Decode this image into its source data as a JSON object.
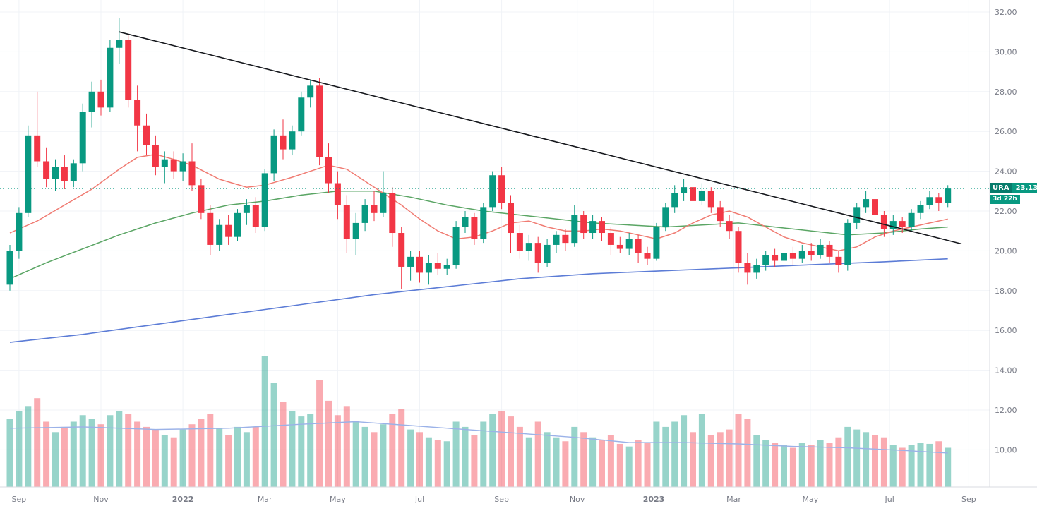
{
  "chart_data": {
    "type": "candlestick",
    "symbol": "URA",
    "last_price": "23.13",
    "countdown": "3d 22h",
    "price_line": {
      "value": 23.13,
      "style": "dotted"
    },
    "colors": {
      "up": "#089981",
      "down": "#f23645",
      "ma_fast": "#f07b72",
      "ma_slow": "#5aa564",
      "ma_long": "#5c7cd6",
      "volume_ma": "#9bb2e8",
      "trendline": "#16181d",
      "grid": "#f0f3f7",
      "axis_text": "#787b86",
      "axis_border": "#d8dbe0",
      "background": "#ffffff"
    },
    "axes": {
      "y_top_value": 32,
      "y_tick_step": 2,
      "y_ticks": [
        "32.00",
        "30.00",
        "28.00",
        "26.00",
        "24.00",
        "22.00",
        "20.00",
        "18.00",
        "16.00",
        "14.00",
        "12.00",
        "10.00"
      ],
      "x_labels": [
        {
          "text": "Sep",
          "i": 1
        },
        {
          "text": "Nov",
          "i": 10
        },
        {
          "text": "2022",
          "i": 19,
          "bold": true
        },
        {
          "text": "Mar",
          "i": 28
        },
        {
          "text": "May",
          "i": 36
        },
        {
          "text": "Jul",
          "i": 45
        },
        {
          "text": "Sep",
          "i": 54
        },
        {
          "text": "Nov",
          "i": 62.3
        },
        {
          "text": "2023",
          "i": 70.7,
          "bold": true
        },
        {
          "text": "Mar",
          "i": 79.5
        },
        {
          "text": "May",
          "i": 87.9
        },
        {
          "text": "Jul",
          "i": 96.6
        },
        {
          "text": "Sep",
          "i": 105.3
        }
      ]
    },
    "candles": [
      [
        18.3,
        20.3,
        18.0,
        20.0
      ],
      [
        20.0,
        22.2,
        19.6,
        21.9
      ],
      [
        21.9,
        26.3,
        21.7,
        25.8
      ],
      [
        25.8,
        28.0,
        24.2,
        24.5
      ],
      [
        24.5,
        25.2,
        23.2,
        23.6
      ],
      [
        23.6,
        24.6,
        23.0,
        24.2
      ],
      [
        24.2,
        24.8,
        23.1,
        23.5
      ],
      [
        23.5,
        24.6,
        23.2,
        24.4
      ],
      [
        24.4,
        27.4,
        24.0,
        27.0
      ],
      [
        27.0,
        28.5,
        26.2,
        28.0
      ],
      [
        28.0,
        28.6,
        26.8,
        27.2
      ],
      [
        27.2,
        30.6,
        27.0,
        30.2
      ],
      [
        30.2,
        31.7,
        29.4,
        30.6
      ],
      [
        30.6,
        30.9,
        27.2,
        27.6
      ],
      [
        27.6,
        28.3,
        25.0,
        26.3
      ],
      [
        26.3,
        26.9,
        24.8,
        25.3
      ],
      [
        25.3,
        25.8,
        23.8,
        24.2
      ],
      [
        24.2,
        25.0,
        23.4,
        24.6
      ],
      [
        24.6,
        25.0,
        23.6,
        24.0
      ],
      [
        24.0,
        24.9,
        23.5,
        24.5
      ],
      [
        24.5,
        25.4,
        23.0,
        23.3
      ],
      [
        23.3,
        23.6,
        21.6,
        21.9
      ],
      [
        21.9,
        22.3,
        19.8,
        20.3
      ],
      [
        20.3,
        21.6,
        20.0,
        21.3
      ],
      [
        21.3,
        21.8,
        20.3,
        20.7
      ],
      [
        20.7,
        22.1,
        20.5,
        21.9
      ],
      [
        21.9,
        22.6,
        21.3,
        22.3
      ],
      [
        22.3,
        22.7,
        20.9,
        21.2
      ],
      [
        21.2,
        24.1,
        21.0,
        23.9
      ],
      [
        23.9,
        26.1,
        23.5,
        25.8
      ],
      [
        25.8,
        26.6,
        24.6,
        25.1
      ],
      [
        25.1,
        26.3,
        24.8,
        26.0
      ],
      [
        26.0,
        28.0,
        25.8,
        27.7
      ],
      [
        27.7,
        28.6,
        27.2,
        28.3
      ],
      [
        28.3,
        28.7,
        24.3,
        24.7
      ],
      [
        24.7,
        25.4,
        22.9,
        23.4
      ],
      [
        23.4,
        24.0,
        21.6,
        22.3
      ],
      [
        22.3,
        22.8,
        19.9,
        20.6
      ],
      [
        20.6,
        21.9,
        19.8,
        21.4
      ],
      [
        21.4,
        22.6,
        21.0,
        22.3
      ],
      [
        22.3,
        23.0,
        21.5,
        21.9
      ],
      [
        21.9,
        24.0,
        21.7,
        22.9
      ],
      [
        22.9,
        23.2,
        20.2,
        20.9
      ],
      [
        20.9,
        21.2,
        18.1,
        19.2
      ],
      [
        19.2,
        20.0,
        18.5,
        19.7
      ],
      [
        19.7,
        20.0,
        18.4,
        18.9
      ],
      [
        18.9,
        19.8,
        18.3,
        19.4
      ],
      [
        19.4,
        19.9,
        18.8,
        19.1
      ],
      [
        19.1,
        19.6,
        18.8,
        19.3
      ],
      [
        19.3,
        21.5,
        19.1,
        21.2
      ],
      [
        21.2,
        22.0,
        20.9,
        21.7
      ],
      [
        21.7,
        21.9,
        20.3,
        20.6
      ],
      [
        20.6,
        22.4,
        20.4,
        22.2
      ],
      [
        22.2,
        24.0,
        22.0,
        23.8
      ],
      [
        23.8,
        24.2,
        22.1,
        22.4
      ],
      [
        22.4,
        22.8,
        19.9,
        20.9
      ],
      [
        20.9,
        21.3,
        19.6,
        20.0
      ],
      [
        20.0,
        20.8,
        19.5,
        20.4
      ],
      [
        20.4,
        20.7,
        18.9,
        19.4
      ],
      [
        19.4,
        20.6,
        19.2,
        20.3
      ],
      [
        20.3,
        21.0,
        19.9,
        20.8
      ],
      [
        20.8,
        21.1,
        20.0,
        20.4
      ],
      [
        20.4,
        22.3,
        20.2,
        21.8
      ],
      [
        21.8,
        22.0,
        20.6,
        20.9
      ],
      [
        20.9,
        21.8,
        20.6,
        21.5
      ],
      [
        21.5,
        21.7,
        20.5,
        20.9
      ],
      [
        20.9,
        21.2,
        19.8,
        20.3
      ],
      [
        20.3,
        20.7,
        19.9,
        20.1
      ],
      [
        20.1,
        20.9,
        19.8,
        20.6
      ],
      [
        20.6,
        20.8,
        19.4,
        19.9
      ],
      [
        19.9,
        20.2,
        19.3,
        19.6
      ],
      [
        19.6,
        21.4,
        19.5,
        21.2
      ],
      [
        21.2,
        22.4,
        21.0,
        22.2
      ],
      [
        22.2,
        23.3,
        21.9,
        22.9
      ],
      [
        22.9,
        23.6,
        22.5,
        23.2
      ],
      [
        23.2,
        23.5,
        22.2,
        22.5
      ],
      [
        22.5,
        23.4,
        22.3,
        23.0
      ],
      [
        23.0,
        23.2,
        21.9,
        22.2
      ],
      [
        22.2,
        22.5,
        21.2,
        21.5
      ],
      [
        21.5,
        21.8,
        20.6,
        21.0
      ],
      [
        21.0,
        21.2,
        18.9,
        19.4
      ],
      [
        19.4,
        19.9,
        18.3,
        18.9
      ],
      [
        18.9,
        19.6,
        18.6,
        19.3
      ],
      [
        19.3,
        20.0,
        19.0,
        19.8
      ],
      [
        19.8,
        20.1,
        19.2,
        19.5
      ],
      [
        19.5,
        20.2,
        19.3,
        19.9
      ],
      [
        19.9,
        20.2,
        19.3,
        19.6
      ],
      [
        19.6,
        20.3,
        19.4,
        20.0
      ],
      [
        20.0,
        20.4,
        19.5,
        19.8
      ],
      [
        19.8,
        20.6,
        19.6,
        20.3
      ],
      [
        20.3,
        20.5,
        19.4,
        19.7
      ],
      [
        19.7,
        20.0,
        18.9,
        19.3
      ],
      [
        19.3,
        21.6,
        19.0,
        21.4
      ],
      [
        21.4,
        22.4,
        21.1,
        22.2
      ],
      [
        22.2,
        23.0,
        21.9,
        22.6
      ],
      [
        22.6,
        22.8,
        21.5,
        21.8
      ],
      [
        21.8,
        22.0,
        20.7,
        21.1
      ],
      [
        21.1,
        21.8,
        20.8,
        21.5
      ],
      [
        21.5,
        21.7,
        20.9,
        21.2
      ],
      [
        21.2,
        22.1,
        21.0,
        21.9
      ],
      [
        21.9,
        22.5,
        21.6,
        22.3
      ],
      [
        22.3,
        23.0,
        22.1,
        22.7
      ],
      [
        22.7,
        22.9,
        22.0,
        22.4
      ],
      [
        22.4,
        23.3,
        22.2,
        23.13
      ]
    ],
    "volume_rel": [
      52,
      58,
      62,
      68,
      50,
      42,
      46,
      50,
      55,
      52,
      48,
      55,
      58,
      56,
      50,
      46,
      44,
      40,
      38,
      44,
      48,
      52,
      56,
      45,
      40,
      46,
      42,
      46,
      100,
      80,
      65,
      58,
      54,
      56,
      82,
      66,
      55,
      62,
      50,
      46,
      42,
      48,
      56,
      60,
      44,
      42,
      38,
      36,
      35,
      50,
      46,
      40,
      50,
      56,
      58,
      54,
      46,
      38,
      50,
      42,
      38,
      35,
      46,
      42,
      38,
      36,
      40,
      33,
      31,
      36,
      34,
      50,
      46,
      50,
      55,
      42,
      56,
      40,
      42,
      44,
      56,
      52,
      40,
      36,
      34,
      32,
      30,
      34,
      32,
      36,
      34,
      38,
      46,
      44,
      42,
      40,
      38,
      32,
      30,
      32,
      34,
      33,
      35,
      30
    ],
    "ma_fast_points": [
      [
        0,
        20.9
      ],
      [
        3,
        21.5
      ],
      [
        6,
        22.3
      ],
      [
        9,
        23.1
      ],
      [
        12,
        24.1
      ],
      [
        14,
        24.7
      ],
      [
        16,
        24.85
      ],
      [
        18,
        24.6
      ],
      [
        20,
        24.3
      ],
      [
        23,
        23.6
      ],
      [
        26,
        23.2
      ],
      [
        28,
        23.3
      ],
      [
        31,
        23.7
      ],
      [
        33,
        24.0
      ],
      [
        35,
        24.3
      ],
      [
        37,
        24.1
      ],
      [
        39,
        23.5
      ],
      [
        41,
        22.9
      ],
      [
        43,
        22.3
      ],
      [
        45,
        21.6
      ],
      [
        47,
        21.0
      ],
      [
        49,
        20.6
      ],
      [
        51,
        20.7
      ],
      [
        53,
        21.0
      ],
      [
        55,
        21.4
      ],
      [
        57,
        21.5
      ],
      [
        59,
        21.2
      ],
      [
        61,
        21.0
      ],
      [
        63,
        21.0
      ],
      [
        65,
        21.1
      ],
      [
        67,
        21.0
      ],
      [
        69,
        20.8
      ],
      [
        71,
        20.6
      ],
      [
        73,
        20.9
      ],
      [
        75,
        21.4
      ],
      [
        77,
        21.8
      ],
      [
        79,
        22.0
      ],
      [
        81,
        21.7
      ],
      [
        83,
        21.2
      ],
      [
        85,
        20.7
      ],
      [
        87,
        20.4
      ],
      [
        89,
        20.2
      ],
      [
        91,
        20.0
      ],
      [
        93,
        20.2
      ],
      [
        95,
        20.7
      ],
      [
        97,
        21.0
      ],
      [
        99,
        21.2
      ],
      [
        101,
        21.4
      ],
      [
        103,
        21.6
      ]
    ],
    "ma_slow_points": [
      [
        0,
        18.6
      ],
      [
        4,
        19.4
      ],
      [
        8,
        20.1
      ],
      [
        12,
        20.8
      ],
      [
        16,
        21.4
      ],
      [
        20,
        21.9
      ],
      [
        24,
        22.3
      ],
      [
        28,
        22.5
      ],
      [
        32,
        22.8
      ],
      [
        36,
        23.0
      ],
      [
        40,
        23.0
      ],
      [
        44,
        22.7
      ],
      [
        48,
        22.3
      ],
      [
        52,
        22.0
      ],
      [
        56,
        21.8
      ],
      [
        60,
        21.6
      ],
      [
        64,
        21.4
      ],
      [
        68,
        21.3
      ],
      [
        72,
        21.2
      ],
      [
        76,
        21.3
      ],
      [
        80,
        21.4
      ],
      [
        84,
        21.2
      ],
      [
        88,
        21.0
      ],
      [
        92,
        20.8
      ],
      [
        96,
        20.9
      ],
      [
        100,
        21.1
      ],
      [
        103,
        21.2
      ]
    ],
    "ma_long_points": [
      [
        0,
        15.4
      ],
      [
        8,
        15.8
      ],
      [
        16,
        16.3
      ],
      [
        24,
        16.8
      ],
      [
        32,
        17.3
      ],
      [
        40,
        17.8
      ],
      [
        48,
        18.2
      ],
      [
        56,
        18.6
      ],
      [
        64,
        18.85
      ],
      [
        72,
        19.0
      ],
      [
        80,
        19.15
      ],
      [
        88,
        19.3
      ],
      [
        96,
        19.45
      ],
      [
        103,
        19.6
      ]
    ],
    "volume_ma_points": [
      [
        0,
        45
      ],
      [
        8,
        46
      ],
      [
        16,
        44
      ],
      [
        24,
        45
      ],
      [
        32,
        48
      ],
      [
        38,
        50
      ],
      [
        44,
        47
      ],
      [
        50,
        44
      ],
      [
        56,
        41
      ],
      [
        62,
        38
      ],
      [
        68,
        34
      ],
      [
        74,
        34
      ],
      [
        80,
        33
      ],
      [
        86,
        31
      ],
      [
        92,
        30
      ],
      [
        98,
        28
      ],
      [
        103,
        26
      ]
    ],
    "trendline": {
      "from": [
        12,
        31.0
      ],
      "to": [
        104.5,
        20.35
      ]
    }
  }
}
